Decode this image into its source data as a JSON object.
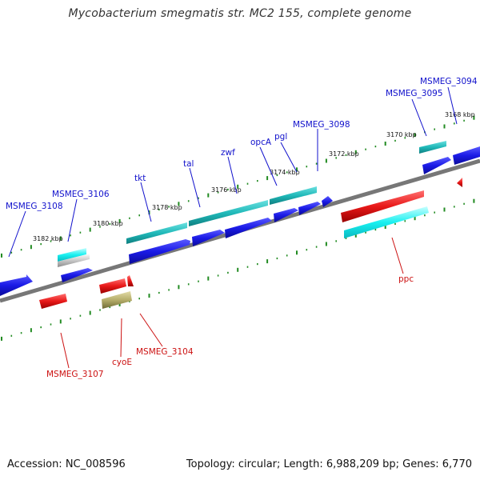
{
  "title": "Mycobacterium smegmatis str. MC2 155, complete genome",
  "footer": {
    "accession": "Accession: NC_008596",
    "summary": "Topology: circular; Length: 6,988,209 bp; Genes: 6,770"
  },
  "colors": {
    "forward_gene_label": "#1111cc",
    "reverse_gene_label": "#cc1111",
    "backbone": "#777777",
    "tick": "#228b22",
    "blue_gene": "#1a1ae6",
    "cyan_feature": "#1fb8b8",
    "red_gene": "#e81818",
    "olive_feature": "#b5ad6a"
  },
  "scale_labels": [
    "3182 kbp",
    "3180 kbp",
    "3178 kbp",
    "3176 kbp",
    "3174 kbp",
    "3172 kbp",
    "3170 kbp",
    "3168 kbp"
  ],
  "forward_genes": [
    "MSMEG_3108",
    "MSMEG_3106",
    "tkt",
    "tal",
    "zwf",
    "opcA",
    "pgl",
    "MSMEG_3098",
    "MSMEG_3095",
    "MSMEG_3094"
  ],
  "reverse_genes": [
    "MSMEG_3107",
    "cyoE",
    "MSMEG_3104",
    "ppc"
  ]
}
